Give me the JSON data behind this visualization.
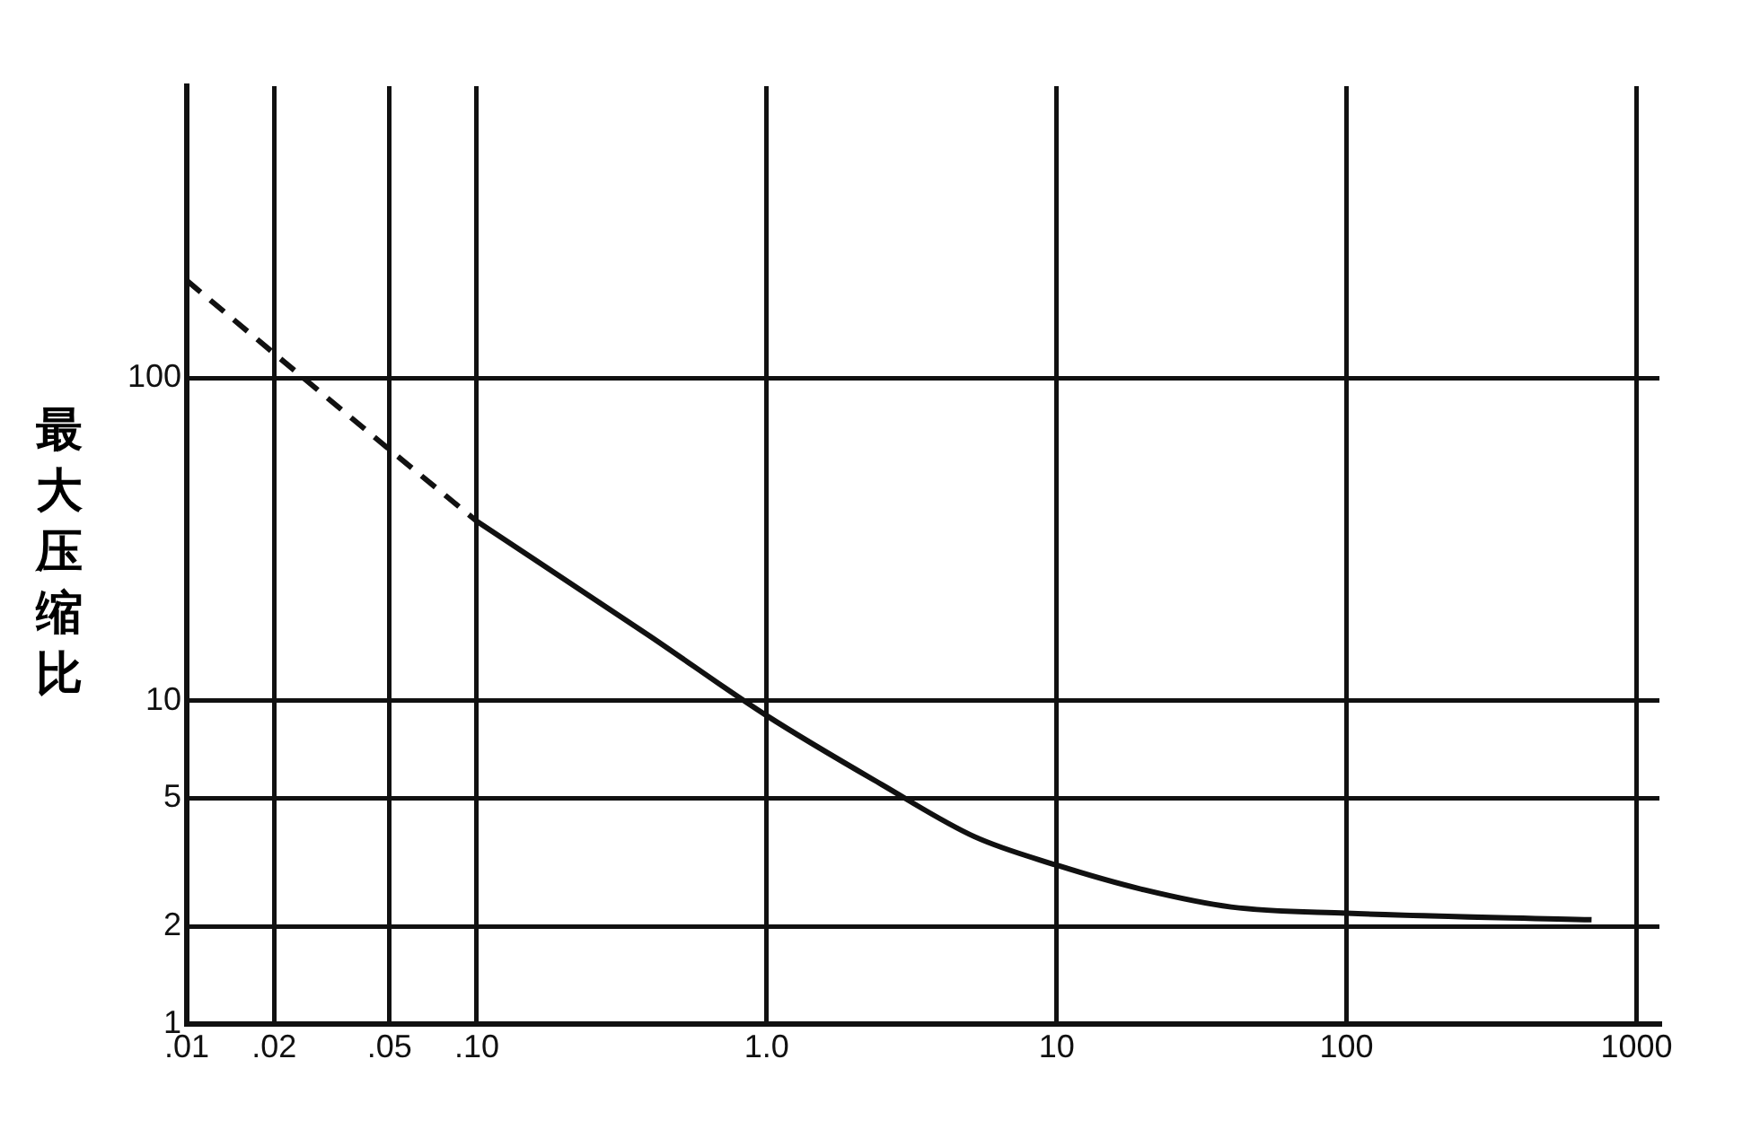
{
  "chart_data": {
    "type": "line",
    "ylabel": "最大压缩比",
    "log": "xy",
    "grid": true,
    "legend": false,
    "marker": "none",
    "xlim": [
      0.01,
      1200
    ],
    "ylim": [
      1,
      800
    ],
    "xticks": [
      {
        "value": 0.01,
        "label": ".01"
      },
      {
        "value": 0.02,
        "label": ".02"
      },
      {
        "value": 0.05,
        "label": ".05"
      },
      {
        "value": 0.1,
        "label": ".10"
      },
      {
        "value": 1,
        "label": "1.0"
      },
      10,
      100,
      1000
    ],
    "yticks": [
      1,
      2,
      5,
      10,
      100
    ],
    "series": [
      {
        "color": "#111111",
        "line_style": "dashed",
        "x": [
          0.01,
          0.02,
          0.05,
          0.1
        ],
        "values": [
          200,
          119,
          60,
          36
        ]
      },
      {
        "color": "#111111",
        "line_style": "solid",
        "x": [
          0.1,
          0.39,
          1,
          2.5,
          5.2,
          10,
          20,
          40,
          100,
          700
        ],
        "values": [
          36,
          16,
          9,
          5.5,
          3.8,
          3.1,
          2.6,
          2.3,
          2.2,
          2.1
        ]
      }
    ]
  }
}
